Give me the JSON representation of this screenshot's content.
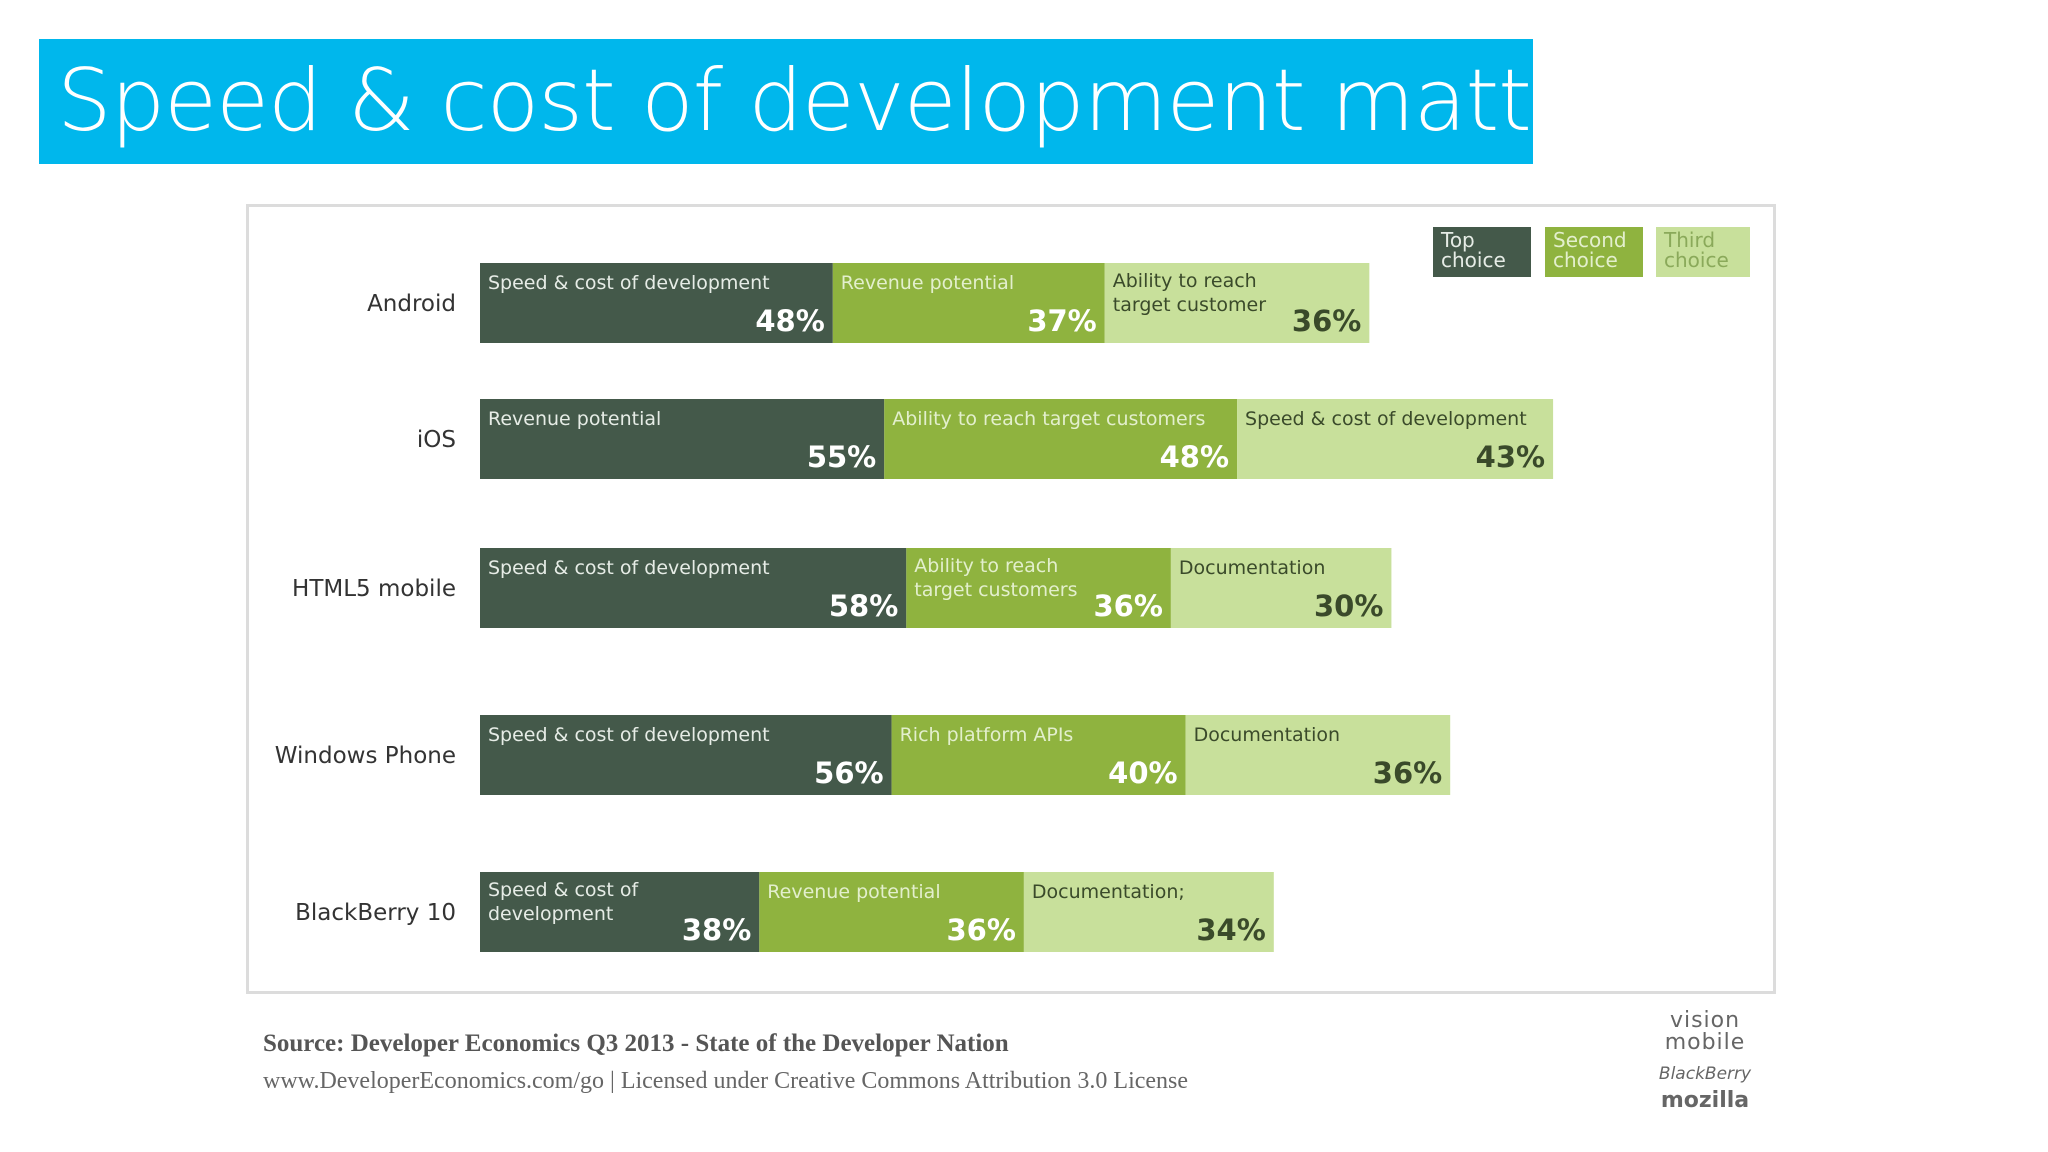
{
  "slide": {
    "title": "Speed & cost of development matter",
    "source": "Source: Developer Economics Q3 2013 - State of the Developer Nation",
    "license": "www.DeveloperEconomics.com/go | Licensed under Creative Commons Attribution 3.0 License",
    "logos": {
      "vision": "vision mobile",
      "blackberry": "BlackBerry",
      "mozilla": "mozilla"
    }
  },
  "colors": {
    "banner": "#00b7ec",
    "top": "#44594a",
    "second": "#8fb33f",
    "third": "#c8e09b"
  },
  "chart_data": {
    "type": "bar",
    "orientation": "horizontal",
    "stacked": true,
    "title": "",
    "xlabel": "",
    "ylabel": "",
    "legend": {
      "position": "top-right",
      "items": [
        {
          "key": "top",
          "line1": "Top",
          "line2": "choice"
        },
        {
          "key": "second",
          "line1": "Second",
          "line2": "choice"
        },
        {
          "key": "third",
          "line1": "Third",
          "line2": "choice"
        }
      ]
    },
    "categories": [
      {
        "name": "Android",
        "segments": [
          {
            "rank": "top",
            "label": [
              "Speed & cost of development"
            ],
            "value": 48,
            "value_text": "48%"
          },
          {
            "rank": "second",
            "label": [
              "Revenue potential"
            ],
            "value": 37,
            "value_text": "37%"
          },
          {
            "rank": "third",
            "label": [
              "Ability to reach",
              "target customer"
            ],
            "value": 36,
            "value_text": "36%"
          }
        ]
      },
      {
        "name": "iOS",
        "segments": [
          {
            "rank": "top",
            "label": [
              "Revenue potential"
            ],
            "value": 55,
            "value_text": "55%"
          },
          {
            "rank": "second",
            "label": [
              "Ability to reach target customers"
            ],
            "value": 48,
            "value_text": "48%"
          },
          {
            "rank": "third",
            "label": [
              "Speed & cost of development"
            ],
            "value": 43,
            "value_text": "43%"
          }
        ]
      },
      {
        "name": "HTML5 mobile",
        "segments": [
          {
            "rank": "top",
            "label": [
              "Speed & cost of development"
            ],
            "value": 58,
            "value_text": "58%"
          },
          {
            "rank": "second",
            "label": [
              "Ability to reach",
              "target customers"
            ],
            "value": 36,
            "value_text": "36%"
          },
          {
            "rank": "third",
            "label": [
              "Documentation"
            ],
            "value": 30,
            "value_text": "30%"
          }
        ]
      },
      {
        "name": "Windows Phone",
        "segments": [
          {
            "rank": "top",
            "label": [
              "Speed & cost of development"
            ],
            "value": 56,
            "value_text": "56%"
          },
          {
            "rank": "second",
            "label": [
              "Rich platform APIs"
            ],
            "value": 40,
            "value_text": "40%"
          },
          {
            "rank": "third",
            "label": [
              "Documentation"
            ],
            "value": 36,
            "value_text": "36%"
          }
        ]
      },
      {
        "name": "BlackBerry 10",
        "segments": [
          {
            "rank": "top",
            "label": [
              "Speed & cost of",
              "development"
            ],
            "value": 38,
            "value_text": "38%"
          },
          {
            "rank": "second",
            "label": [
              "Revenue potential"
            ],
            "value": 36,
            "value_text": "36%"
          },
          {
            "rank": "third",
            "label": [
              "Documentation;"
            ],
            "value": 34,
            "value_text": "34%"
          }
        ]
      }
    ]
  }
}
